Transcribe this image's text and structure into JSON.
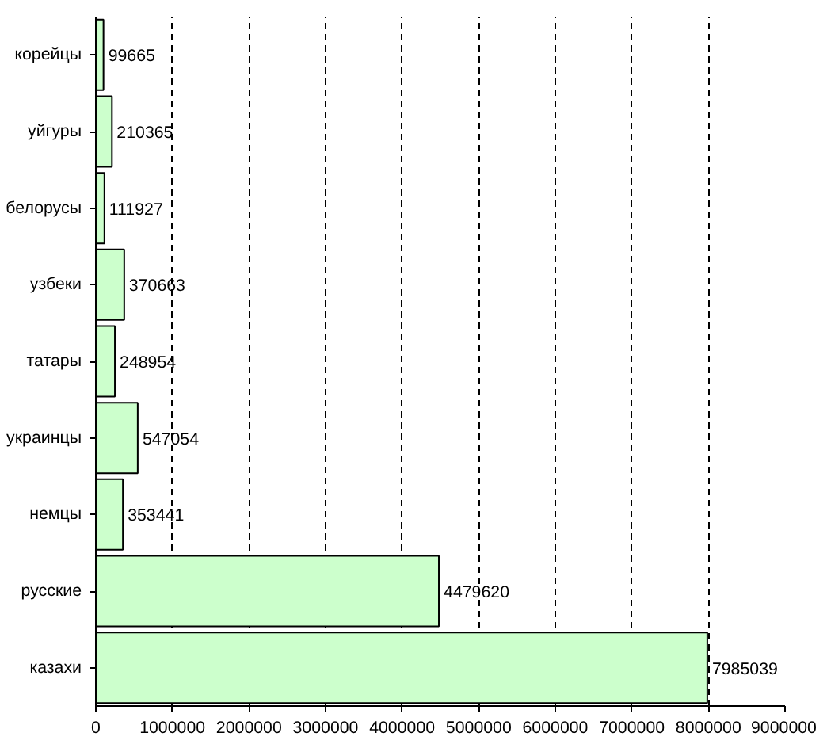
{
  "chart_data": {
    "type": "bar",
    "orientation": "horizontal",
    "categories": [
      "корейцы",
      "уйгуры",
      "белорусы",
      "узбеки",
      "татары",
      "украинцы",
      "немцы",
      "русские",
      "казахи"
    ],
    "values": [
      99665,
      210365,
      111927,
      370663,
      248954,
      547054,
      353441,
      4479620,
      7985039
    ],
    "color": "#ccffcc",
    "data_labels": true,
    "xlim": [
      0,
      9000000
    ],
    "xticks": [
      0,
      1000000,
      2000000,
      3000000,
      4000000,
      5000000,
      6000000,
      7000000,
      8000000,
      9000000
    ],
    "grid": "x"
  }
}
